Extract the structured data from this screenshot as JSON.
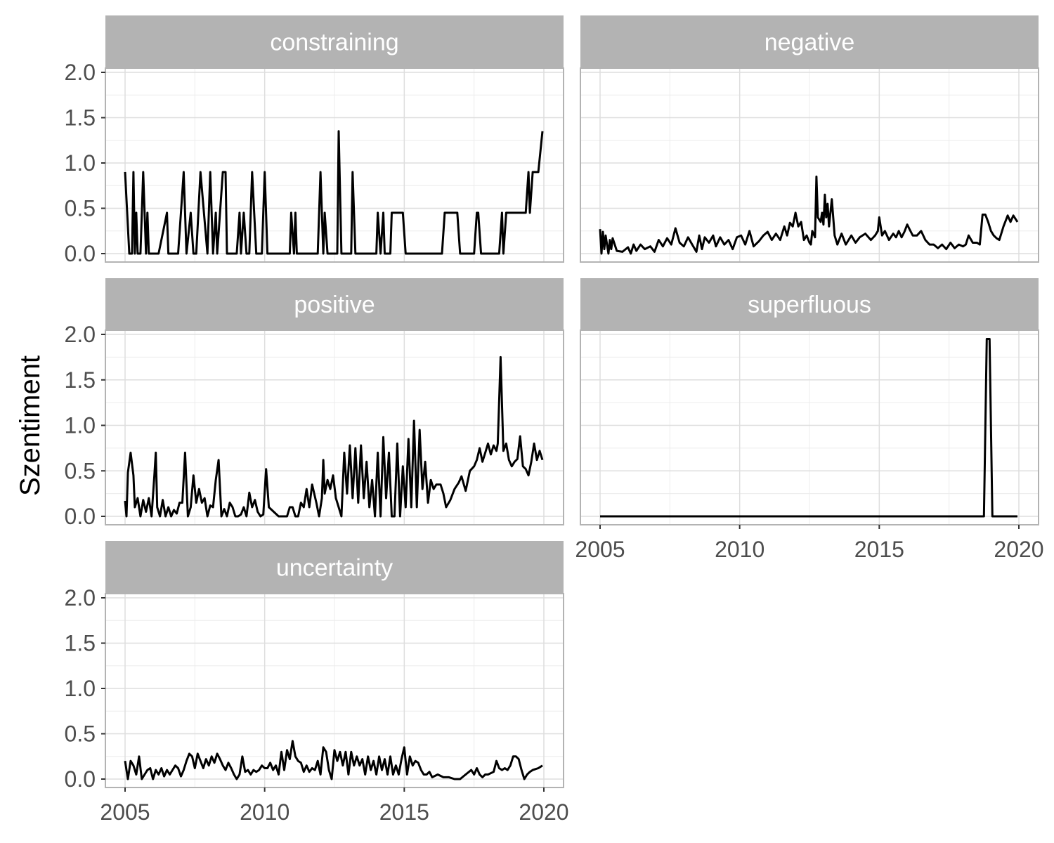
{
  "chart_data": {
    "type": "line",
    "ylabel": "Szentiment",
    "xlabel": "",
    "xlim": [
      2005,
      2020
    ],
    "ylim": [
      0,
      2
    ],
    "x_ticks": [
      "2005",
      "2010",
      "2015",
      "2020"
    ],
    "y_ticks": [
      "0.0",
      "0.5",
      "1.0",
      "1.5",
      "2.0"
    ],
    "grid": true,
    "line_color": "#000000",
    "strip_color": "#b3b3b3",
    "panels": [
      {
        "name": "constraining",
        "x": [
          2005.0,
          2005.1,
          2005.15,
          2005.25,
          2005.3,
          2005.35,
          2005.4,
          2005.45,
          2005.5,
          2005.55,
          2005.65,
          2005.75,
          2005.8,
          2005.85,
          2005.9,
          2005.95,
          2006.0,
          2006.1,
          2006.2,
          2006.5,
          2006.55,
          2006.65,
          2006.9,
          2007.0,
          2007.1,
          2007.2,
          2007.35,
          2007.45,
          2007.55,
          2007.7,
          2007.95,
          2008.05,
          2008.15,
          2008.25,
          2008.3,
          2008.5,
          2008.6,
          2008.65,
          2008.75,
          2009.0,
          2009.1,
          2009.15,
          2009.25,
          2009.35,
          2009.45,
          2009.55,
          2009.7,
          2009.8,
          2009.9,
          2010.0,
          2010.1,
          2010.9,
          2010.95,
          2011.05,
          2011.1,
          2011.15,
          2011.9,
          2012.0,
          2012.1,
          2012.15,
          2012.25,
          2012.55,
          2012.6,
          2012.65,
          2012.75,
          2013.1,
          2013.15,
          2013.25,
          2013.35,
          2014.0,
          2014.05,
          2014.15,
          2014.25,
          2014.3,
          2014.4,
          2014.5,
          2014.55,
          2014.6,
          2014.95,
          2015.05,
          2015.15,
          2016.35,
          2016.45,
          2016.9,
          2017.0,
          2017.5,
          2017.6,
          2017.65,
          2017.75,
          2018.4,
          2018.5,
          2018.55,
          2018.65,
          2018.75,
          2019.35,
          2019.45,
          2019.5,
          2019.6,
          2019.8,
          2019.95
        ],
        "y": [
          0.9,
          0.3,
          0.0,
          0.0,
          0.9,
          0.0,
          0.45,
          0.0,
          0.0,
          0.0,
          0.9,
          0.0,
          0.45,
          0.0,
          0.0,
          0.0,
          0.0,
          0.0,
          0.0,
          0.45,
          0.0,
          0.0,
          0.0,
          0.45,
          0.9,
          0.0,
          0.45,
          0.0,
          0.0,
          0.9,
          0.0,
          0.9,
          0.0,
          0.45,
          0.0,
          0.9,
          0.9,
          0.0,
          0.0,
          0.0,
          0.45,
          0.0,
          0.45,
          0.0,
          0.0,
          0.9,
          0.0,
          0.0,
          0.0,
          0.9,
          0.0,
          0.0,
          0.45,
          0.0,
          0.45,
          0.0,
          0.0,
          0.9,
          0.0,
          0.45,
          0.0,
          0.0,
          0.0,
          1.35,
          0.0,
          0.0,
          0.9,
          0.0,
          0.0,
          0.0,
          0.45,
          0.0,
          0.45,
          0.0,
          0.0,
          0.0,
          0.45,
          0.45,
          0.45,
          0.0,
          0.0,
          0.0,
          0.45,
          0.45,
          0.0,
          0.0,
          0.45,
          0.45,
          0.0,
          0.0,
          0.45,
          0.0,
          0.45,
          0.45,
          0.45,
          0.9,
          0.45,
          0.9,
          0.9,
          1.35
        ]
      },
      {
        "name": "negative",
        "x": [
          2005.0,
          2005.05,
          2005.1,
          2005.15,
          2005.2,
          2005.3,
          2005.35,
          2005.4,
          2005.45,
          2005.6,
          2005.8,
          2006.0,
          2006.1,
          2006.2,
          2006.3,
          2006.45,
          2006.6,
          2006.8,
          2006.95,
          2007.1,
          2007.25,
          2007.4,
          2007.55,
          2007.7,
          2007.85,
          2008.0,
          2008.15,
          2008.3,
          2008.45,
          2008.55,
          2008.65,
          2008.75,
          2008.9,
          2009.05,
          2009.15,
          2009.3,
          2009.45,
          2009.6,
          2009.75,
          2009.9,
          2010.05,
          2010.2,
          2010.35,
          2010.5,
          2010.7,
          2010.85,
          2011.0,
          2011.15,
          2011.3,
          2011.45,
          2011.6,
          2011.7,
          2011.8,
          2011.9,
          2012.0,
          2012.1,
          2012.2,
          2012.3,
          2012.4,
          2012.5,
          2012.55,
          2012.6,
          2012.7,
          2012.75,
          2012.8,
          2012.9,
          2012.95,
          2013.0,
          2013.05,
          2013.1,
          2013.15,
          2013.2,
          2013.3,
          2013.4,
          2013.5,
          2013.65,
          2013.8,
          2014.0,
          2014.15,
          2014.3,
          2014.5,
          2014.7,
          2014.85,
          2014.95,
          2015.0,
          2015.1,
          2015.2,
          2015.35,
          2015.5,
          2015.6,
          2015.7,
          2015.8,
          2015.9,
          2016.0,
          2016.1,
          2016.2,
          2016.35,
          2016.5,
          2016.65,
          2016.8,
          2016.95,
          2017.1,
          2017.25,
          2017.4,
          2017.55,
          2017.7,
          2017.85,
          2018.0,
          2018.1,
          2018.2,
          2018.35,
          2018.5,
          2018.6,
          2018.7,
          2018.8,
          2018.9,
          2019.0,
          2019.1,
          2019.2,
          2019.3,
          2019.45,
          2019.6,
          2019.7,
          2019.8,
          2019.95
        ],
        "y": [
          0.27,
          0.0,
          0.24,
          0.05,
          0.2,
          0.0,
          0.15,
          0.05,
          0.17,
          0.03,
          0.02,
          0.07,
          0.0,
          0.1,
          0.03,
          0.1,
          0.05,
          0.08,
          0.02,
          0.15,
          0.08,
          0.17,
          0.1,
          0.28,
          0.12,
          0.08,
          0.18,
          0.1,
          0.02,
          0.2,
          0.05,
          0.18,
          0.12,
          0.2,
          0.08,
          0.18,
          0.1,
          0.15,
          0.05,
          0.18,
          0.2,
          0.1,
          0.25,
          0.08,
          0.14,
          0.2,
          0.24,
          0.15,
          0.22,
          0.15,
          0.3,
          0.2,
          0.34,
          0.3,
          0.45,
          0.3,
          0.35,
          0.15,
          0.2,
          0.12,
          0.1,
          0.25,
          0.18,
          0.85,
          0.4,
          0.35,
          0.45,
          0.32,
          0.65,
          0.4,
          0.55,
          0.3,
          0.6,
          0.2,
          0.1,
          0.22,
          0.1,
          0.2,
          0.12,
          0.18,
          0.22,
          0.15,
          0.2,
          0.25,
          0.4,
          0.2,
          0.25,
          0.15,
          0.22,
          0.18,
          0.25,
          0.18,
          0.24,
          0.32,
          0.26,
          0.2,
          0.2,
          0.25,
          0.15,
          0.1,
          0.1,
          0.06,
          0.1,
          0.05,
          0.12,
          0.06,
          0.1,
          0.08,
          0.1,
          0.2,
          0.12,
          0.12,
          0.1,
          0.43,
          0.43,
          0.35,
          0.25,
          0.2,
          0.17,
          0.15,
          0.3,
          0.42,
          0.35,
          0.42,
          0.35
        ]
      },
      {
        "name": "positive",
        "x": [
          2005.0,
          2005.05,
          2005.1,
          2005.2,
          2005.3,
          2005.35,
          2005.45,
          2005.55,
          2005.65,
          2005.75,
          2005.85,
          2005.95,
          2006.05,
          2006.1,
          2006.15,
          2006.25,
          2006.35,
          2006.45,
          2006.55,
          2006.65,
          2006.75,
          2006.85,
          2006.95,
          2007.05,
          2007.15,
          2007.25,
          2007.35,
          2007.45,
          2007.55,
          2007.65,
          2007.75,
          2007.85,
          2007.95,
          2008.05,
          2008.15,
          2008.25,
          2008.35,
          2008.45,
          2008.55,
          2008.65,
          2008.75,
          2008.85,
          2008.95,
          2009.05,
          2009.15,
          2009.25,
          2009.35,
          2009.45,
          2009.55,
          2009.65,
          2009.75,
          2009.85,
          2009.95,
          2010.05,
          2010.15,
          2010.5,
          2010.55,
          2010.7,
          2010.8,
          2010.9,
          2011.0,
          2011.1,
          2011.2,
          2011.3,
          2011.4,
          2011.5,
          2011.6,
          2011.7,
          2011.85,
          2011.95,
          2012.05,
          2012.1,
          2012.15,
          2012.25,
          2012.35,
          2012.45,
          2012.55,
          2012.65,
          2012.75,
          2012.85,
          2012.95,
          2013.05,
          2013.15,
          2013.25,
          2013.35,
          2013.45,
          2013.55,
          2013.65,
          2013.75,
          2013.85,
          2013.95,
          2014.05,
          2014.15,
          2014.25,
          2014.35,
          2014.45,
          2014.55,
          2014.65,
          2014.75,
          2014.85,
          2014.95,
          2015.05,
          2015.15,
          2015.25,
          2015.35,
          2015.45,
          2015.55,
          2015.65,
          2015.75,
          2015.85,
          2015.95,
          2016.05,
          2016.15,
          2016.3,
          2016.4,
          2016.5,
          2016.65,
          2016.8,
          2016.95,
          2017.05,
          2017.2,
          2017.35,
          2017.5,
          2017.6,
          2017.7,
          2017.8,
          2017.9,
          2018.0,
          2018.1,
          2018.2,
          2018.3,
          2018.35,
          2018.45,
          2018.55,
          2018.65,
          2018.75,
          2018.85,
          2018.95,
          2019.05,
          2019.15,
          2019.25,
          2019.35,
          2019.45,
          2019.55,
          2019.65,
          2019.75,
          2019.85,
          2019.95
        ],
        "y": [
          0.17,
          0.0,
          0.48,
          0.7,
          0.45,
          0.1,
          0.2,
          0.0,
          0.18,
          0.05,
          0.2,
          0.0,
          0.45,
          0.7,
          0.1,
          0.0,
          0.18,
          0.0,
          0.1,
          0.0,
          0.07,
          0.03,
          0.15,
          0.15,
          0.7,
          0.0,
          0.1,
          0.45,
          0.15,
          0.3,
          0.15,
          0.2,
          0.0,
          0.12,
          0.1,
          0.4,
          0.62,
          0.0,
          0.08,
          0.0,
          0.15,
          0.1,
          0.0,
          0.0,
          0.02,
          0.1,
          0.0,
          0.26,
          0.1,
          0.18,
          0.05,
          0.0,
          0.02,
          0.52,
          0.1,
          0.0,
          0.0,
          0.0,
          0.0,
          0.1,
          0.1,
          0.0,
          0.0,
          0.15,
          0.1,
          0.3,
          0.1,
          0.35,
          0.15,
          0.0,
          0.2,
          0.62,
          0.25,
          0.4,
          0.3,
          0.45,
          0.2,
          0.1,
          0.0,
          0.7,
          0.25,
          0.78,
          0.2,
          0.75,
          0.15,
          0.78,
          0.2,
          0.6,
          0.1,
          0.4,
          0.0,
          0.7,
          0.0,
          0.87,
          0.2,
          0.7,
          0.0,
          0.0,
          0.8,
          0.0,
          0.55,
          0.1,
          0.85,
          0.1,
          1.05,
          0.1,
          0.95,
          0.3,
          0.6,
          0.15,
          0.4,
          0.3,
          0.35,
          0.35,
          0.25,
          0.1,
          0.18,
          0.3,
          0.37,
          0.44,
          0.28,
          0.5,
          0.55,
          0.62,
          0.75,
          0.6,
          0.7,
          0.8,
          0.68,
          0.78,
          0.72,
          0.8,
          1.75,
          0.72,
          0.8,
          0.62,
          0.55,
          0.6,
          0.63,
          0.88,
          0.55,
          0.52,
          0.45,
          0.6,
          0.8,
          0.62,
          0.72,
          0.62
        ]
      },
      {
        "name": "superfluous",
        "x": [
          2005.0,
          2018.75,
          2018.85,
          2018.95,
          2019.05,
          2019.95
        ],
        "y": [
          0.0,
          0.0,
          1.95,
          1.95,
          0.0,
          0.0
        ]
      },
      {
        "name": "uncertainty",
        "x": [
          2005.0,
          2005.1,
          2005.2,
          2005.3,
          2005.4,
          2005.5,
          2005.6,
          2005.7,
          2005.8,
          2005.9,
          2006.0,
          2006.1,
          2006.2,
          2006.3,
          2006.4,
          2006.5,
          2006.6,
          2006.7,
          2006.8,
          2006.9,
          2007.0,
          2007.1,
          2007.2,
          2007.3,
          2007.4,
          2007.5,
          2007.6,
          2007.7,
          2007.8,
          2007.9,
          2008.0,
          2008.1,
          2008.2,
          2008.3,
          2008.4,
          2008.5,
          2008.6,
          2008.7,
          2008.8,
          2008.9,
          2009.0,
          2009.1,
          2009.2,
          2009.3,
          2009.4,
          2009.5,
          2009.6,
          2009.7,
          2009.8,
          2009.9,
          2010.0,
          2010.1,
          2010.2,
          2010.3,
          2010.4,
          2010.5,
          2010.6,
          2010.7,
          2010.8,
          2010.9,
          2011.0,
          2011.1,
          2011.2,
          2011.3,
          2011.4,
          2011.5,
          2011.6,
          2011.7,
          2011.8,
          2011.9,
          2012.0,
          2012.1,
          2012.2,
          2012.3,
          2012.4,
          2012.5,
          2012.6,
          2012.7,
          2012.8,
          2012.9,
          2013.0,
          2013.1,
          2013.2,
          2013.3,
          2013.4,
          2013.5,
          2013.6,
          2013.7,
          2013.8,
          2013.9,
          2014.0,
          2014.1,
          2014.2,
          2014.3,
          2014.4,
          2014.5,
          2014.6,
          2014.7,
          2014.8,
          2014.9,
          2015.0,
          2015.1,
          2015.2,
          2015.3,
          2015.4,
          2015.5,
          2015.6,
          2015.7,
          2015.8,
          2015.9,
          2016.0,
          2016.2,
          2016.4,
          2016.6,
          2016.8,
          2017.0,
          2017.2,
          2017.4,
          2017.5,
          2017.6,
          2017.7,
          2017.8,
          2017.9,
          2018.0,
          2018.2,
          2018.3,
          2018.4,
          2018.5,
          2018.6,
          2018.7,
          2018.8,
          2018.9,
          2019.0,
          2019.1,
          2019.2,
          2019.3,
          2019.4,
          2019.5,
          2019.6,
          2019.8,
          2019.95
        ],
        "y": [
          0.2,
          0.0,
          0.2,
          0.15,
          0.05,
          0.25,
          0.0,
          0.05,
          0.1,
          0.12,
          0.0,
          0.1,
          0.05,
          0.12,
          0.03,
          0.1,
          0.05,
          0.1,
          0.15,
          0.12,
          0.03,
          0.1,
          0.2,
          0.28,
          0.25,
          0.12,
          0.28,
          0.2,
          0.12,
          0.22,
          0.15,
          0.25,
          0.18,
          0.28,
          0.22,
          0.15,
          0.1,
          0.18,
          0.12,
          0.05,
          0.0,
          0.05,
          0.25,
          0.08,
          0.1,
          0.05,
          0.1,
          0.08,
          0.1,
          0.15,
          0.12,
          0.12,
          0.18,
          0.1,
          0.15,
          0.05,
          0.3,
          0.1,
          0.32,
          0.22,
          0.42,
          0.25,
          0.2,
          0.18,
          0.08,
          0.15,
          0.08,
          0.12,
          0.1,
          0.2,
          0.05,
          0.35,
          0.3,
          0.1,
          0.0,
          0.32,
          0.2,
          0.3,
          0.15,
          0.3,
          0.05,
          0.3,
          0.15,
          0.25,
          0.15,
          0.22,
          0.05,
          0.25,
          0.1,
          0.2,
          0.05,
          0.25,
          0.1,
          0.22,
          0.05,
          0.25,
          0.05,
          0.15,
          0.05,
          0.22,
          0.35,
          0.05,
          0.25,
          0.15,
          0.2,
          0.18,
          0.1,
          0.05,
          0.05,
          0.08,
          0.02,
          0.05,
          0.02,
          0.02,
          0.0,
          0.0,
          0.05,
          0.1,
          0.05,
          0.12,
          0.05,
          0.02,
          0.05,
          0.05,
          0.08,
          0.2,
          0.12,
          0.1,
          0.12,
          0.1,
          0.15,
          0.25,
          0.25,
          0.22,
          0.1,
          0.0,
          0.05,
          0.08,
          0.1,
          0.12,
          0.15
        ]
      }
    ]
  }
}
